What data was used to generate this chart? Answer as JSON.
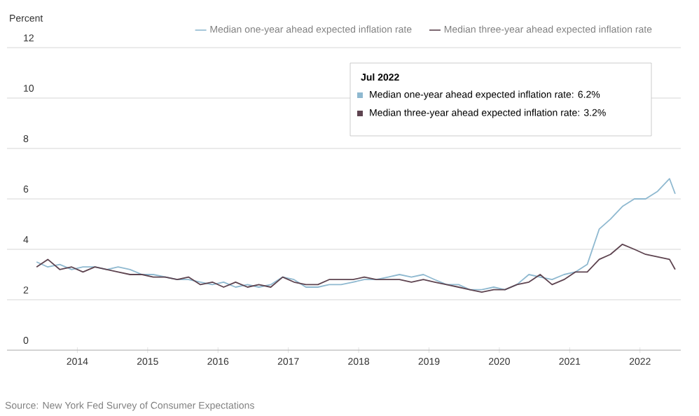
{
  "chart_data": {
    "type": "line",
    "ylabel": "Percent",
    "x": [
      "2013-06",
      "2013-08",
      "2013-10",
      "2013-12",
      "2014-02",
      "2014-04",
      "2014-06",
      "2014-08",
      "2014-10",
      "2014-12",
      "2015-02",
      "2015-04",
      "2015-06",
      "2015-08",
      "2015-10",
      "2015-12",
      "2016-02",
      "2016-04",
      "2016-06",
      "2016-08",
      "2016-10",
      "2016-12",
      "2017-02",
      "2017-04",
      "2017-06",
      "2017-08",
      "2017-10",
      "2017-12",
      "2018-02",
      "2018-04",
      "2018-06",
      "2018-08",
      "2018-10",
      "2018-12",
      "2019-02",
      "2019-04",
      "2019-06",
      "2019-08",
      "2019-10",
      "2019-12",
      "2020-02",
      "2020-04",
      "2020-06",
      "2020-08",
      "2020-10",
      "2020-12",
      "2021-02",
      "2021-04",
      "2021-06",
      "2021-08",
      "2021-10",
      "2021-12",
      "2022-02",
      "2022-04",
      "2022-06",
      "2022-07"
    ],
    "series": [
      {
        "name": "Median one-year ahead expected inflation rate",
        "color": "#8fb9d0",
        "values": [
          3.5,
          3.3,
          3.4,
          3.2,
          3.3,
          3.3,
          3.2,
          3.3,
          3.2,
          3.0,
          3.0,
          2.9,
          2.8,
          2.8,
          2.7,
          2.6,
          2.7,
          2.5,
          2.6,
          2.5,
          2.6,
          2.9,
          2.8,
          2.5,
          2.5,
          2.6,
          2.6,
          2.7,
          2.8,
          2.8,
          2.9,
          3.0,
          2.9,
          3.0,
          2.8,
          2.6,
          2.6,
          2.4,
          2.4,
          2.5,
          2.4,
          2.6,
          3.0,
          2.9,
          2.8,
          3.0,
          3.1,
          3.4,
          4.8,
          5.2,
          5.7,
          6.0,
          6.0,
          6.3,
          6.8,
          6.2
        ]
      },
      {
        "name": "Median three-year ahead expected inflation rate",
        "color": "#5e4450",
        "values": [
          3.3,
          3.6,
          3.2,
          3.3,
          3.1,
          3.3,
          3.2,
          3.1,
          3.0,
          3.0,
          2.9,
          2.9,
          2.8,
          2.9,
          2.6,
          2.7,
          2.5,
          2.7,
          2.5,
          2.6,
          2.5,
          2.9,
          2.7,
          2.6,
          2.6,
          2.8,
          2.8,
          2.8,
          2.9,
          2.8,
          2.8,
          2.8,
          2.7,
          2.8,
          2.7,
          2.6,
          2.5,
          2.4,
          2.3,
          2.4,
          2.4,
          2.6,
          2.7,
          3.0,
          2.6,
          2.8,
          3.1,
          3.1,
          3.6,
          3.8,
          4.2,
          4.0,
          3.8,
          3.7,
          3.6,
          3.2
        ]
      }
    ],
    "xlim": [
      "2013-01",
      "2022-08"
    ],
    "xticks": [
      "2014",
      "2015",
      "2016",
      "2017",
      "2018",
      "2019",
      "2020",
      "2021",
      "2022"
    ],
    "ylim": [
      0,
      12
    ],
    "yticks": [
      0,
      2,
      4,
      6,
      8,
      10,
      12
    ],
    "grid": "y",
    "legend": "top",
    "annotations": [
      "Jul 2022",
      "Median one-year ahead expected inflation rate: 6.2%",
      "Median three-year ahead expected inflation rate: 3.2%",
      "Source: New York Fed Survey of Consumer Expectations"
    ]
  }
}
